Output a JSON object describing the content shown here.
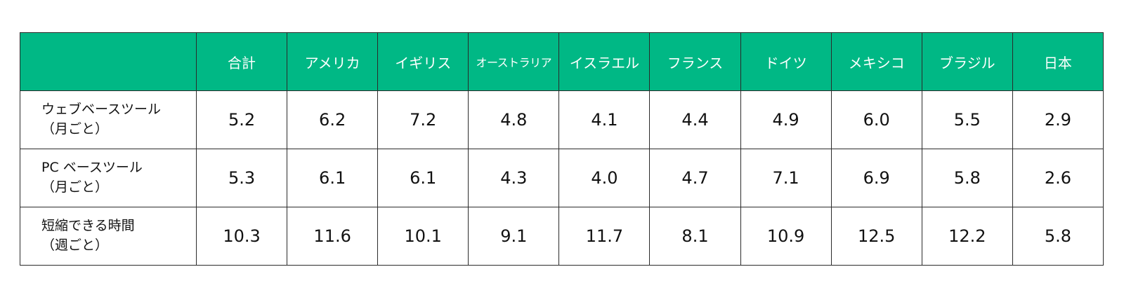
{
  "chart_data": {
    "type": "table",
    "columns": [
      "合計",
      "アメリカ",
      "イギリス",
      "オーストラリア",
      "イスラエル",
      "フランス",
      "ドイツ",
      "メキシコ",
      "ブラジル",
      "日本"
    ],
    "rows": [
      {
        "label_lines": [
          "ウェブベースツール",
          "（月ごと）"
        ],
        "values": [
          "5.2",
          "6.2",
          "7.2",
          "4.8",
          "4.1",
          "4.4",
          "4.9",
          "6.0",
          "5.5",
          "2.9"
        ]
      },
      {
        "label_lines": [
          "PC ベースツール",
          "（月ごと）"
        ],
        "values": [
          "5.3",
          "6.1",
          "6.1",
          "4.3",
          "4.0",
          "4.7",
          "7.1",
          "6.9",
          "5.8",
          "2.6"
        ]
      },
      {
        "label_lines": [
          "短縮できる時間",
          "（週ごと）"
        ],
        "values": [
          "10.3",
          "11.6",
          "10.1",
          "9.1",
          "11.7",
          "8.1",
          "10.9",
          "12.5",
          "12.2",
          "5.8"
        ]
      }
    ],
    "header_color": "#00b885",
    "header_text_color": "#ffffff"
  }
}
